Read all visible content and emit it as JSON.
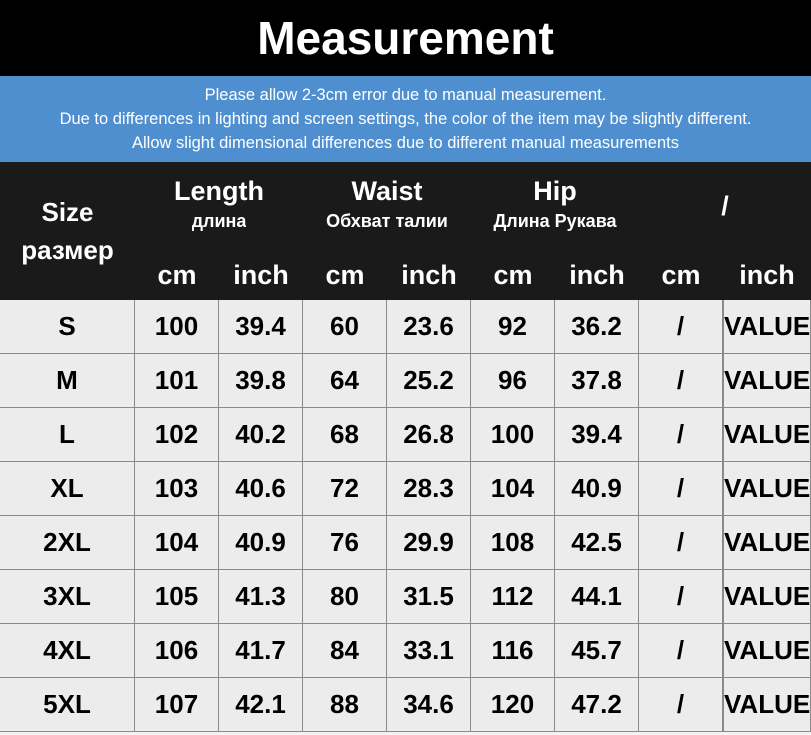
{
  "title": "Measurement",
  "notes": [
    "Please allow 2-3cm error due to manual measurement.",
    "Due to differences in lighting and screen settings, the color of the item may be slightly different.",
    "Allow slight dimensional differences due to different manual measurements"
  ],
  "table": {
    "size_header": {
      "en": "Size",
      "ru": "размер"
    },
    "groups": [
      {
        "name": "Length",
        "sub": "длина"
      },
      {
        "name": "Waist",
        "sub": "Обхват талии"
      },
      {
        "name": "Hip",
        "sub": "Длина Рукава"
      },
      {
        "name": "/"
      }
    ],
    "units": [
      "cm",
      "inch",
      "cm",
      "inch",
      "cm",
      "inch",
      "cm",
      "inch"
    ],
    "rows": [
      [
        "S",
        "100",
        "39.4",
        "60",
        "23.6",
        "92",
        "36.2",
        "/",
        "VALUE"
      ],
      [
        "M",
        "101",
        "39.8",
        "64",
        "25.2",
        "96",
        "37.8",
        "/",
        "VALUE"
      ],
      [
        "L",
        "102",
        "40.2",
        "68",
        "26.8",
        "100",
        "39.4",
        "/",
        "VALUE"
      ],
      [
        "XL",
        "103",
        "40.6",
        "72",
        "28.3",
        "104",
        "40.9",
        "/",
        "VALUE"
      ],
      [
        "2XL",
        "104",
        "40.9",
        "76",
        "29.9",
        "108",
        "42.5",
        "/",
        "VALUE"
      ],
      [
        "3XL",
        "105",
        "41.3",
        "80",
        "31.5",
        "112",
        "44.1",
        "/",
        "VALUE"
      ],
      [
        "4XL",
        "106",
        "41.7",
        "84",
        "33.1",
        "116",
        "45.7",
        "/",
        "VALUE"
      ],
      [
        "5XL",
        "107",
        "42.1",
        "88",
        "34.6",
        "120",
        "47.2",
        "/",
        "VALUE"
      ]
    ]
  }
}
